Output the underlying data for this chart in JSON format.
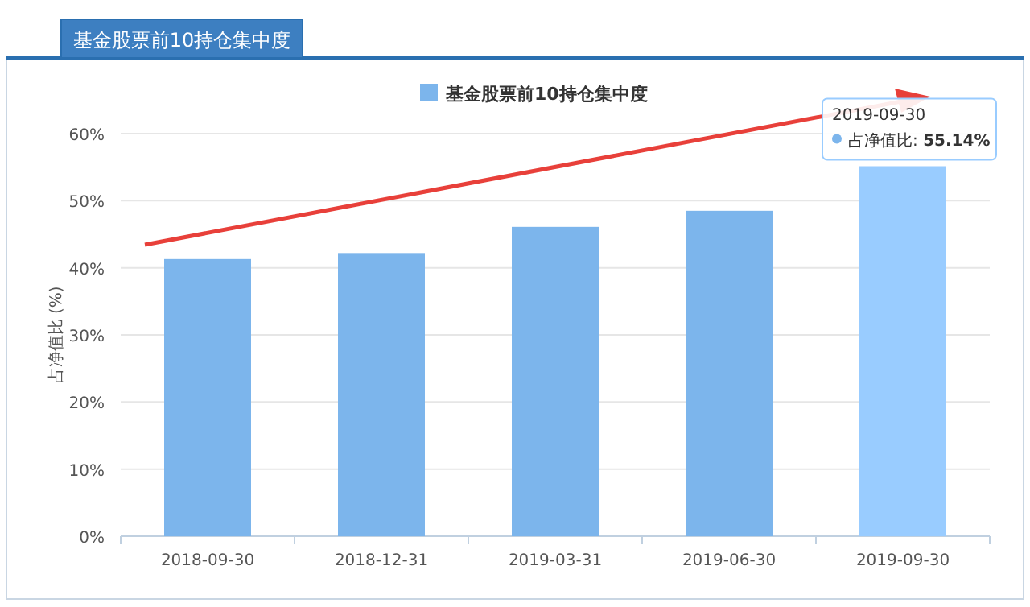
{
  "chart_data": {
    "type": "bar",
    "title": "基金股票前10持仓集中度",
    "ylabel": "占净值比 (%)",
    "categories": [
      "2018-09-30",
      "2018-12-31",
      "2019-03-31",
      "2019-06-30",
      "2019-09-30"
    ],
    "series": [
      {
        "name": "基金股票前10持仓集中度",
        "values": [
          41.3,
          42.2,
          46.1,
          48.5,
          55.14
        ],
        "colors": [
          "#7cb5ec",
          "#7cb5ec",
          "#7cb5ec",
          "#7cb5ec",
          "#99ccff"
        ]
      }
    ],
    "ylim": [
      0,
      60
    ],
    "yticks": [
      {
        "value": 0,
        "label": "0%"
      },
      {
        "value": 10,
        "label": "10%"
      },
      {
        "value": 20,
        "label": "20%"
      },
      {
        "value": 30,
        "label": "30%"
      },
      {
        "value": 40,
        "label": "40%"
      },
      {
        "value": 50,
        "label": "50%"
      },
      {
        "value": 60,
        "label": "60%"
      }
    ],
    "grid": "y",
    "legend": "top",
    "annotations": [
      {
        "text": "2019-09-30",
        "x": "2019-09-30",
        "y": 55.14
      },
      {
        "text": "占净值比: **55.14%**",
        "x": "2019-09-30",
        "y": 55.14
      }
    ]
  }
}
